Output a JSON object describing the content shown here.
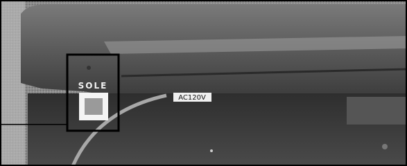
{
  "labels": {
    "brand": "SOLE",
    "voltage": "AC120V"
  }
}
